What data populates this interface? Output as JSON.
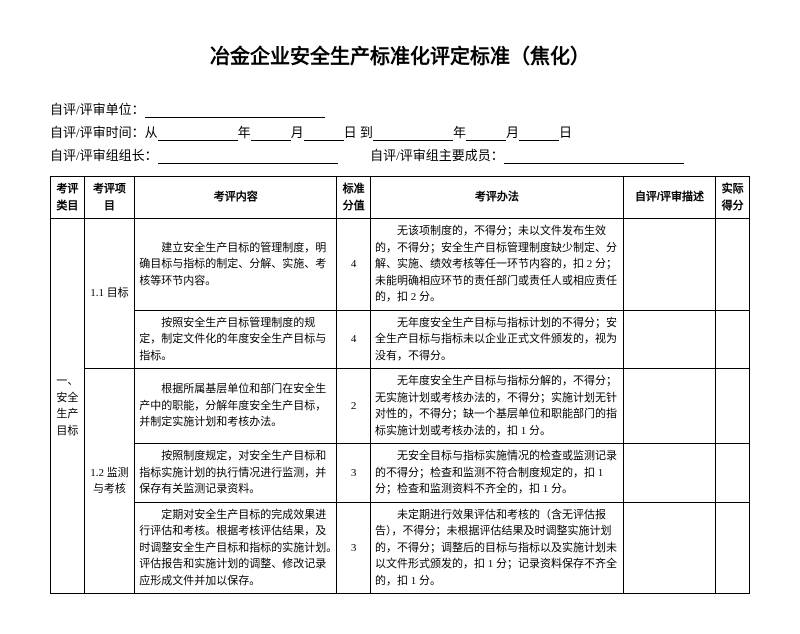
{
  "title": "冶金企业安全生产标准化评定标准（焦化）",
  "header": {
    "unit_label": "自评/评审单位：",
    "time_label": "自评/评审时间：从",
    "year": "年",
    "month": "月",
    "day": "日",
    "to": "到",
    "leader_label": "自评/评审组组长：",
    "members_label": "自评/评审组主要成员："
  },
  "columns": {
    "c1": "考评类目",
    "c2": "考评项目",
    "c3": "考评内容",
    "c4": "标准分值",
    "c5": "考评办法",
    "c6": "自评/评审描述",
    "c7": "实际得分"
  },
  "cat1": "一、安全生产目标",
  "item11": "1.1 目标",
  "item12": "1.2 监测与考核",
  "rows": [
    {
      "content": "建立安全生产目标的管理制度，明确目标与指标的制定、分解、实施、考核等环节内容。",
      "score": "4",
      "method": "无该项制度的，不得分；未以文件发布生效的，不得分；安全生产目标管理制度缺少制定、分解、实施、绩效考核等任一环节内容的，扣 2 分；未能明确相应环节的责任部门或责任人或相应责任的，扣 2 分。"
    },
    {
      "content": "按照安全生产目标管理制度的规定，制定文件化的年度安全生产目标与指标。",
      "score": "4",
      "method": "无年度安全生产目标与指标计划的不得分；安全生产目标与指标未以企业正式文件颁发的，视为没有，不得分。"
    },
    {
      "content": "根据所属基层单位和部门在安全生产中的职能，分解年度安全生产目标，并制定实施计划和考核办法。",
      "score": "2",
      "method": "无年度安全生产目标与指标分解的，不得分；无实施计划或考核办法的，不得分；实施计划无针对性的，不得分；缺一个基层单位和职能部门的指标实施计划或考核办法的，扣 1 分。"
    },
    {
      "content": "按照制度规定，对安全生产目标和指标实施计划的执行情况进行监测，并保存有关监测记录资料。",
      "score": "3",
      "method": "无安全目标与指标实施情况的检查或监测记录的不得分；检查和监测不符合制度规定的，扣 1 分；检查和监测资料不齐全的，扣 1 分。"
    },
    {
      "content": "定期对安全生产目标的完成效果进行评估和考核。根据考核评估结果，及时调整安全生产目标和指标的实施计划。　　评估报告和实施计划的调整、修改记录应形成文件并加以保存。",
      "score": "3",
      "method": "未定期进行效果评估和考核的（含无评估报告），不得分；未根据评估结果及时调整实施计划的，不得分；调整后的目标与指标以及实施计划未以文件形式颁发的，扣 1 分；记录资料保存不齐全的，扣 1 分。"
    }
  ]
}
